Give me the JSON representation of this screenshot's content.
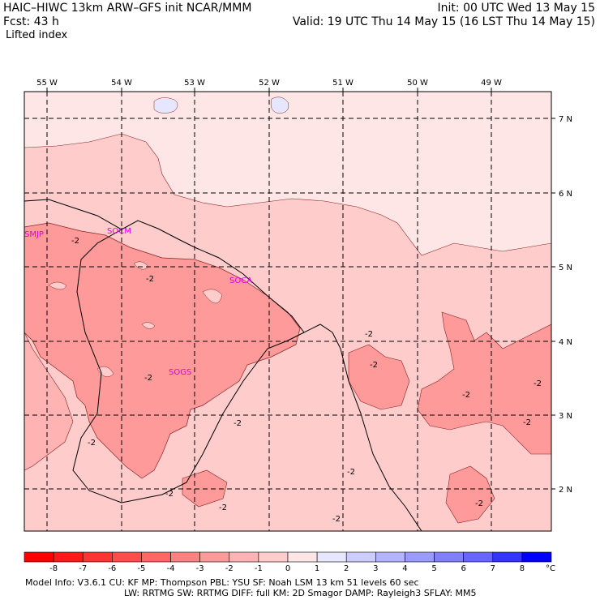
{
  "header": {
    "title_left": "HAIC–HIWC 13km ARW–GFS init   NCAR/MMM",
    "init_right": "Init: 00 UTC Wed 13 May 15",
    "fcst_label": "Fcst:   43 h",
    "valid_right": "Valid: 19 UTC Thu 14 May 15 (16 LST Thu 14 May 15)",
    "field_name": "Lifted index"
  },
  "map": {
    "longitudes": [
      "55 W",
      "54 W",
      "53 W",
      "52 W",
      "51 W",
      "50 W",
      "49 W"
    ],
    "latitudes": [
      "7 N",
      "6 N",
      "5 N",
      "4 N",
      "3 N",
      "2 N"
    ],
    "stations": [
      "SMJP",
      "SOCM",
      "SOCA",
      "SOGS"
    ],
    "contour_label": "-2"
  },
  "colorbar": {
    "labels": [
      "-8",
      "-7",
      "-6",
      "-5",
      "-4",
      "-3",
      "-2",
      "-1",
      "0",
      "1",
      "2",
      "3",
      "4",
      "5",
      "6",
      "7",
      "8"
    ],
    "unit": "°C",
    "colors": [
      "#ff1a1a",
      "#ff3434",
      "#ff4d4d",
      "#ff6666",
      "#ff8080",
      "#ff9a9a",
      "#ffb3b3",
      "#ffcccc",
      "#ffe6e6",
      "#e6e6ff",
      "#ccccff",
      "#b3b3ff",
      "#9a9aff",
      "#8080ff",
      "#6666ff",
      "#3434ff",
      "#1a1aff"
    ]
  },
  "footer": {
    "line1": "Model Info: V3.6.1    CU: KF      MP: Thompson    PBL: YSU     SF: Noah LSM    13 km   51 levels  60 sec",
    "line2": "LW: RRTMG    SW: RRTMG  DIFF: full    KM: 2D Smagor DAMP: Rayleigh3  SFLAY: MM5"
  }
}
